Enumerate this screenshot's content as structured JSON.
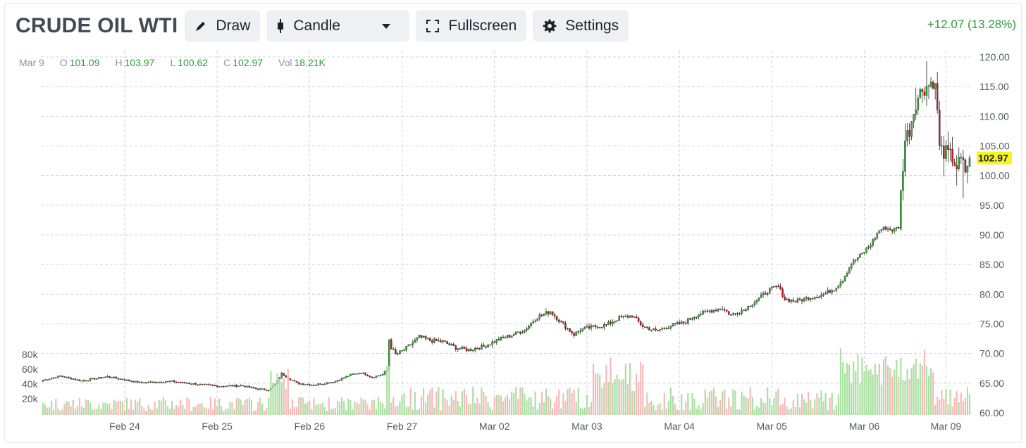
{
  "header": {
    "symbol": "CRUDE OIL WTI",
    "buttons": {
      "draw": "Draw",
      "chart_type": "Candle",
      "fullscreen": "Fullscreen",
      "settings": "Settings"
    },
    "change": "+12.07 (13.28%)"
  },
  "ohlc": {
    "date": "Mar 9",
    "o_label": "O",
    "o": "101.09",
    "h_label": "H",
    "h": "103.97",
    "l_label": "L",
    "l": "100.62",
    "c_label": "C",
    "c": "102.97",
    "vol_label": "Vol",
    "vol": "18.21K"
  },
  "colors": {
    "up": "#2db52d",
    "down": "#d8141a",
    "vol_up": "#a9dfa0",
    "vol_down": "#f7b8b8",
    "grid": "#cfd3d9",
    "price_tag": "#f5f520",
    "change_text": "#2e9b3a"
  },
  "chart_data": {
    "type": "candlestick",
    "title": "CRUDE OIL WTI",
    "last_price_label": "102.97",
    "y_ticks": [
      "60.00",
      "65.00",
      "70.00",
      "75.00",
      "80.00",
      "85.00",
      "90.00",
      "95.00",
      "100.00",
      "105.00",
      "110.00",
      "115.00",
      "120.00"
    ],
    "ylim": [
      60,
      120
    ],
    "volume_ticks": [
      "20k",
      "40k",
      "60k",
      "80k"
    ],
    "x_ticks": [
      "Feb 24",
      "Feb 25",
      "Feb 26",
      "Feb 27",
      "Mar 02",
      "Mar 03",
      "Mar 04",
      "Mar 05",
      "Mar 06",
      "Mar 09"
    ],
    "anchors": [
      [
        0,
        65.5
      ],
      [
        8,
        66.2
      ],
      [
        18,
        65.4
      ],
      [
        30,
        66.1
      ],
      [
        45,
        65.1
      ],
      [
        60,
        65.3
      ],
      [
        72,
        64.8
      ],
      [
        82,
        64.5
      ],
      [
        92,
        64.6
      ],
      [
        100,
        64.0
      ],
      [
        105,
        63.9
      ],
      [
        108,
        64.8
      ],
      [
        111,
        66.6
      ],
      [
        118,
        65.0
      ],
      [
        126,
        64.7
      ],
      [
        136,
        65.3
      ],
      [
        143,
        66.4
      ],
      [
        148,
        66.8
      ],
      [
        153,
        66.0
      ],
      [
        158,
        66.5
      ],
      [
        160,
        67.2
      ],
      [
        160.2,
        73.5
      ],
      [
        162,
        71.0
      ],
      [
        164,
        69.8
      ],
      [
        168,
        70.6
      ],
      [
        175,
        72.8
      ],
      [
        180,
        72.2
      ],
      [
        186,
        72.0
      ],
      [
        192,
        71.0
      ],
      [
        198,
        70.6
      ],
      [
        205,
        71.2
      ],
      [
        212,
        72.4
      ],
      [
        218,
        73.1
      ],
      [
        224,
        74.0
      ],
      [
        230,
        76.2
      ],
      [
        236,
        77.1
      ],
      [
        240,
        75.6
      ],
      [
        244,
        74.2
      ],
      [
        247,
        73.2
      ],
      [
        250,
        74.0
      ],
      [
        256,
        74.5
      ],
      [
        262,
        74.8
      ],
      [
        268,
        76.0
      ],
      [
        274,
        76.4
      ],
      [
        279,
        74.6
      ],
      [
        285,
        73.8
      ],
      [
        292,
        74.7
      ],
      [
        298,
        75.2
      ],
      [
        304,
        76.5
      ],
      [
        310,
        77.2
      ],
      [
        316,
        77.6
      ],
      [
        320,
        76.5
      ],
      [
        326,
        77.4
      ],
      [
        332,
        79.0
      ],
      [
        338,
        80.8
      ],
      [
        342,
        81.3
      ],
      [
        345,
        79.2
      ],
      [
        350,
        78.8
      ],
      [
        356,
        79.4
      ],
      [
        362,
        79.8
      ],
      [
        368,
        80.9
      ],
      [
        372,
        82.5
      ],
      [
        376,
        85.2
      ],
      [
        381,
        86.8
      ],
      [
        385,
        88.4
      ],
      [
        389,
        90.8
      ],
      [
        392,
        91.2
      ],
      [
        395,
        90.8
      ],
      [
        398,
        91.3
      ],
      [
        399.2,
        98.5
      ],
      [
        401,
        106
      ],
      [
        403,
        107.8
      ],
      [
        406,
        112.5
      ],
      [
        409,
        114.6
      ],
      [
        412,
        115.3
      ],
      [
        414,
        116.0
      ],
      [
        415.6,
        114.0
      ],
      [
        417,
        104.5
      ],
      [
        420,
        103.8
      ],
      [
        423,
        103.0
      ],
      [
        425,
        101.5
      ],
      [
        427,
        102.5
      ],
      [
        429,
        100.8
      ],
      [
        431,
        102.97
      ]
    ],
    "n_candles": 432,
    "volume_max": 80000
  }
}
